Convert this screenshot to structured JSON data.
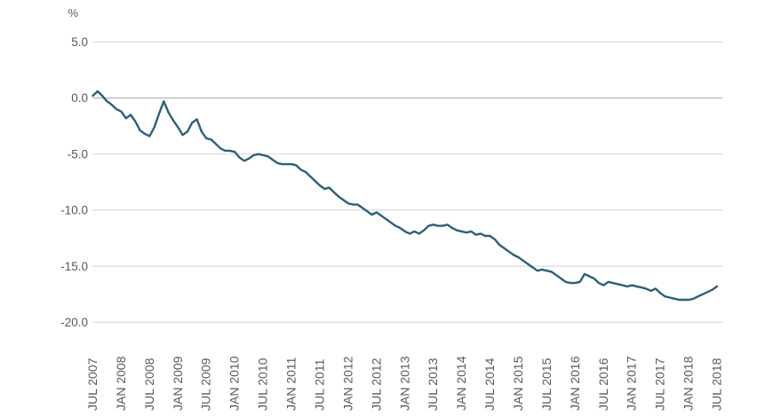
{
  "chart_data": {
    "type": "line",
    "title": "",
    "unit_label": "%",
    "x_interval": "monthly",
    "x_start_label": "JUL 2007",
    "x_end_label": "JUL 2018",
    "x_tick_labels": [
      "JUL 2007",
      "JAN 2008",
      "JUL 2008",
      "JAN 2009",
      "JUL 2009",
      "JAN 2010",
      "JUL 2010",
      "JAN 2011",
      "JUL 2011",
      "JAN 2012",
      "JUL 2012",
      "JAN 2013",
      "JUL 2013",
      "JAN 2014",
      "JUL 2014",
      "JAN 2015",
      "JUL 2015",
      "JAN 2016",
      "JUL 2016",
      "JAN 2017",
      "JUL 2017",
      "JAN 2018",
      "JUL 2018"
    ],
    "x_ticks_every_n_months": 6,
    "y_ticks": [
      {
        "label": "5.0",
        "value": 5
      },
      {
        "label": "0.0",
        "value": 0
      },
      {
        "label": "-5.0",
        "value": -5
      },
      {
        "label": "-10.0",
        "value": -10
      },
      {
        "label": "-15.0",
        "value": -15
      },
      {
        "label": "-20.0",
        "value": -20
      }
    ],
    "ylim": [
      -20,
      5
    ],
    "grid": "horizontal",
    "legend": "none",
    "series": [
      {
        "name": "series-1",
        "values": [
          0.2,
          0.6,
          0.2,
          -0.3,
          -0.6,
          -1.0,
          -1.2,
          -1.8,
          -1.5,
          -2.1,
          -2.9,
          -3.2,
          -3.4,
          -2.6,
          -1.4,
          -0.3,
          -1.3,
          -2.0,
          -2.6,
          -3.3,
          -3.0,
          -2.2,
          -1.9,
          -3.0,
          -3.6,
          -3.7,
          -4.1,
          -4.5,
          -4.7,
          -4.7,
          -4.8,
          -5.3,
          -5.6,
          -5.4,
          -5.1,
          -5.0,
          -5.1,
          -5.2,
          -5.5,
          -5.8,
          -5.9,
          -5.9,
          -5.9,
          -6.0,
          -6.4,
          -6.6,
          -7.0,
          -7.4,
          -7.8,
          -8.1,
          -8.0,
          -8.4,
          -8.8,
          -9.1,
          -9.4,
          -9.5,
          -9.5,
          -9.8,
          -10.1,
          -10.4,
          -10.2,
          -10.5,
          -10.8,
          -11.1,
          -11.4,
          -11.6,
          -11.9,
          -12.1,
          -11.9,
          -12.1,
          -11.8,
          -11.4,
          -11.3,
          -11.4,
          -11.4,
          -11.3,
          -11.6,
          -11.8,
          -11.9,
          -12.0,
          -11.9,
          -12.2,
          -12.1,
          -12.3,
          -12.3,
          -12.6,
          -13.1,
          -13.4,
          -13.7,
          -14.0,
          -14.2,
          -14.5,
          -14.8,
          -15.1,
          -15.4,
          -15.3,
          -15.4,
          -15.5,
          -15.8,
          -16.1,
          -16.4,
          -16.5,
          -16.5,
          -16.4,
          -15.7,
          -15.9,
          -16.1,
          -16.5,
          -16.7,
          -16.4,
          -16.5,
          -16.6,
          -16.7,
          -16.8,
          -16.7,
          -16.8,
          -16.9,
          -17.0,
          -17.2,
          -17.0,
          -17.4,
          -17.7,
          -17.8,
          -17.9,
          -18.0,
          -18.0,
          -18.0,
          -17.9,
          -17.7,
          -17.5,
          -17.3,
          -17.1,
          -16.8
        ]
      }
    ],
    "colors": {
      "line": "#2E5F78",
      "grid": "#D9D9D9",
      "zero_line": "#B3B3B3",
      "text": "#595959"
    }
  }
}
